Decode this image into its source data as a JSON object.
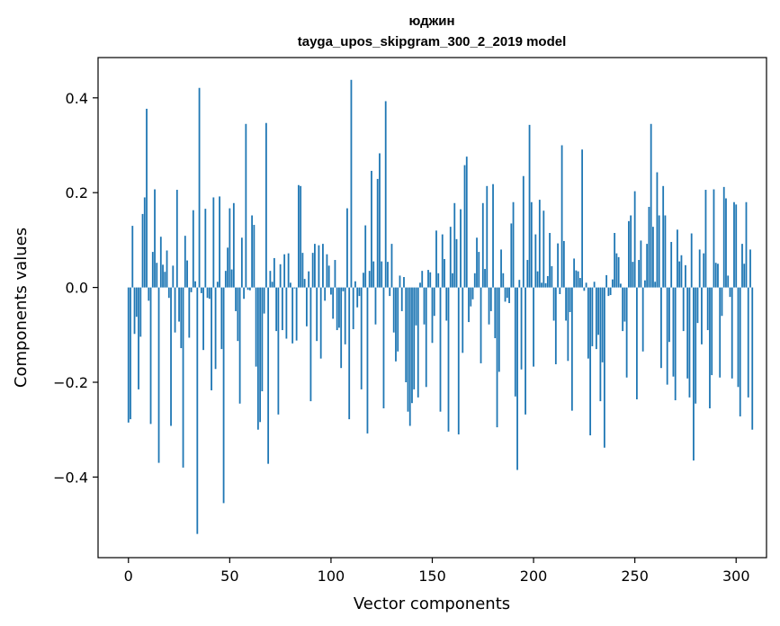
{
  "chart_data": {
    "type": "bar",
    "title_line1": "юджин",
    "title_line2": "tayga_upos_skipgram_300_2_2019 model",
    "xlabel": "Vector components",
    "ylabel": "Components values",
    "xlim": [
      -15,
      315
    ],
    "ylim": [
      -0.57,
      0.485
    ],
    "xticks": [
      0,
      50,
      100,
      150,
      200,
      250,
      300
    ],
    "xtick_labels": [
      "0",
      "50",
      "100",
      "150",
      "200",
      "250",
      "300"
    ],
    "yticks": [
      -0.4,
      -0.2,
      0.0,
      0.2,
      0.4
    ],
    "ytick_labels": [
      "−0.4",
      "−0.2",
      "0.0",
      "0.2",
      "0.4"
    ],
    "grid": false,
    "bar_color": "#1f77b4",
    "values": [
      -0.285,
      -0.278,
      0.13,
      -0.098,
      -0.062,
      -0.215,
      -0.104,
      0.155,
      0.19,
      0.377,
      -0.028,
      -0.288,
      0.075,
      0.207,
      0.052,
      -0.37,
      0.107,
      0.048,
      0.033,
      0.078,
      -0.022,
      -0.292,
      0.046,
      -0.095,
      0.206,
      -0.072,
      -0.128,
      -0.38,
      0.109,
      0.057,
      -0.106,
      -0.01,
      0.163,
      0.013,
      -0.52,
      0.421,
      -0.012,
      -0.132,
      0.166,
      -0.022,
      -0.024,
      -0.217,
      0.19,
      -0.172,
      0.012,
      0.192,
      -0.13,
      -0.455,
      0.035,
      0.084,
      0.167,
      0.038,
      0.178,
      -0.05,
      -0.113,
      -0.245,
      0.105,
      -0.024,
      0.345,
      -0.005,
      -0.006,
      0.152,
      0.132,
      -0.167,
      -0.3,
      -0.284,
      -0.219,
      -0.055,
      0.347,
      -0.372,
      0.035,
      0.012,
      0.062,
      -0.092,
      -0.268,
      0.049,
      -0.09,
      0.07,
      -0.108,
      0.072,
      0.01,
      -0.118,
      -0.002,
      -0.112,
      0.216,
      0.214,
      0.073,
      0.018,
      -0.082,
      0.034,
      -0.24,
      0.073,
      0.092,
      -0.113,
      0.089,
      -0.15,
      0.092,
      -0.028,
      0.07,
      0.046,
      -0.015,
      -0.066,
      0.058,
      -0.09,
      -0.085,
      -0.17,
      -0.008,
      -0.12,
      0.167,
      -0.278,
      0.438,
      -0.088,
      0.013,
      -0.042,
      -0.018,
      -0.215,
      0.031,
      0.131,
      -0.308,
      0.035,
      0.246,
      0.055,
      -0.078,
      0.229,
      0.283,
      0.055,
      -0.255,
      0.393,
      0.054,
      -0.018,
      0.092,
      -0.095,
      -0.156,
      -0.135,
      0.025,
      -0.05,
      0.022,
      -0.2,
      -0.262,
      -0.292,
      -0.244,
      -0.215,
      -0.08,
      -0.232,
      0.01,
      0.035,
      -0.078,
      -0.21,
      0.037,
      0.032,
      -0.117,
      -0.06,
      0.12,
      0.03,
      -0.262,
      0.112,
      0.06,
      -0.07,
      -0.304,
      0.128,
      0.03,
      0.178,
      0.102,
      -0.31,
      0.165,
      -0.138,
      0.258,
      0.276,
      -0.073,
      -0.04,
      -0.025,
      0.03,
      0.105,
      0.075,
      -0.16,
      0.178,
      0.039,
      0.214,
      -0.078,
      -0.05,
      0.218,
      -0.107,
      -0.295,
      -0.178,
      0.08,
      0.03,
      -0.03,
      -0.022,
      -0.033,
      0.135,
      0.18,
      -0.23,
      -0.385,
      0.016,
      -0.173,
      0.235,
      -0.268,
      0.058,
      0.343,
      0.18,
      -0.167,
      0.112,
      0.034,
      0.185,
      0.01,
      0.162,
      0.009,
      0.024,
      0.115,
      0.045,
      -0.07,
      -0.162,
      0.093,
      -0.014,
      0.3,
      0.098,
      -0.07,
      -0.155,
      -0.052,
      -0.26,
      0.061,
      0.036,
      0.034,
      0.02,
      0.291,
      -0.007,
      0.01,
      -0.15,
      -0.312,
      -0.124,
      0.012,
      -0.13,
      -0.1,
      -0.24,
      -0.158,
      -0.338,
      0.026,
      -0.018,
      -0.016,
      0.017,
      0.115,
      0.072,
      0.064,
      0.008,
      -0.092,
      -0.072,
      -0.19,
      0.14,
      0.152,
      0.054,
      0.203,
      -0.236,
      0.058,
      0.099,
      -0.135,
      0.015,
      0.092,
      0.17,
      0.345,
      0.128,
      0.012,
      0.243,
      0.152,
      -0.17,
      0.214,
      0.152,
      -0.205,
      -0.115,
      0.096,
      -0.188,
      -0.238,
      0.122,
      0.055,
      0.068,
      -0.092,
      0.047,
      -0.192,
      -0.232,
      0.114,
      -0.365,
      -0.245,
      -0.075,
      0.08,
      -0.12,
      0.072,
      0.206,
      -0.09,
      -0.255,
      -0.185,
      0.207,
      0.052,
      0.05,
      -0.19,
      -0.06,
      0.212,
      0.188,
      0.025,
      -0.02,
      -0.192,
      0.18,
      0.175,
      -0.21,
      -0.272,
      0.092,
      0.05,
      0.18,
      -0.232,
      0.08,
      -0.3
    ]
  }
}
